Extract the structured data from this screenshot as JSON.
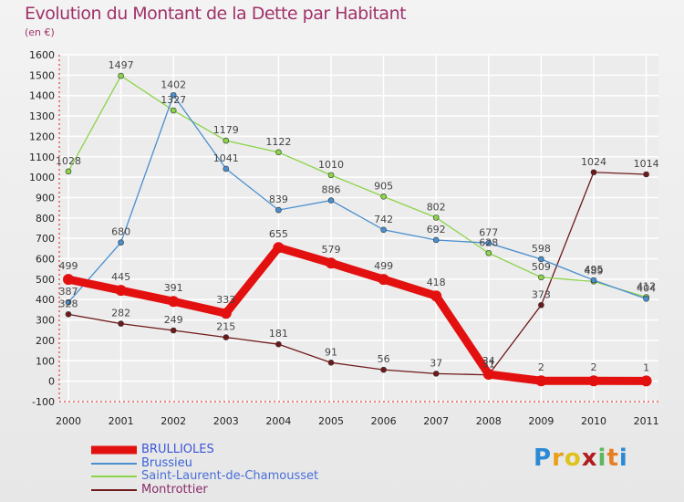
{
  "title": "Evolution du Montant de la Dette par Habitant",
  "unit": "(en €)",
  "logo": {
    "letters": [
      "P",
      "r",
      "o",
      "x",
      "i",
      "t",
      "i"
    ],
    "colors": [
      "#2b8ad6",
      "#e8a019",
      "#e0c21c",
      "#b01e1e",
      "#5cb85c",
      "#e67e22",
      "#2b8ad6"
    ]
  },
  "chart_data": {
    "type": "line",
    "title": "Evolution du Montant de la Dette par Habitant",
    "subtitle": "(en €)",
    "xlabel": "",
    "ylabel": "",
    "categories": [
      "2000",
      "2001",
      "2002",
      "2003",
      "2004",
      "2005",
      "2006",
      "2007",
      "2008",
      "2009",
      "2010",
      "2011"
    ],
    "ylim": [
      -100,
      1600
    ],
    "yticks": [
      -100,
      0,
      100,
      200,
      300,
      400,
      500,
      600,
      700,
      800,
      900,
      1000,
      1100,
      1200,
      1300,
      1400,
      1500,
      1600
    ],
    "grid": true,
    "legend_position": "bottom-left",
    "series": [
      {
        "name": "BRULLIOLES",
        "color": "#e31010",
        "values": [
          499,
          445,
          391,
          333,
          655,
          579,
          499,
          418,
          34,
          2,
          2,
          1
        ]
      },
      {
        "name": "Brussieu",
        "color": "#4a8fcf",
        "values": [
          387,
          680,
          1402,
          1041,
          839,
          886,
          742,
          692,
          677,
          598,
          495,
          404
        ]
      },
      {
        "name": "Saint-Laurent-de-Chamousset",
        "color": "#8cd44a",
        "values": [
          1028,
          1497,
          1327,
          1179,
          1122,
          1010,
          905,
          802,
          628,
          509,
          489,
          412
        ]
      },
      {
        "name": "Montrottier",
        "color": "#6e1a1a",
        "values": [
          328,
          282,
          249,
          215,
          181,
          91,
          56,
          37,
          31,
          373,
          1024,
          1014
        ]
      }
    ]
  }
}
